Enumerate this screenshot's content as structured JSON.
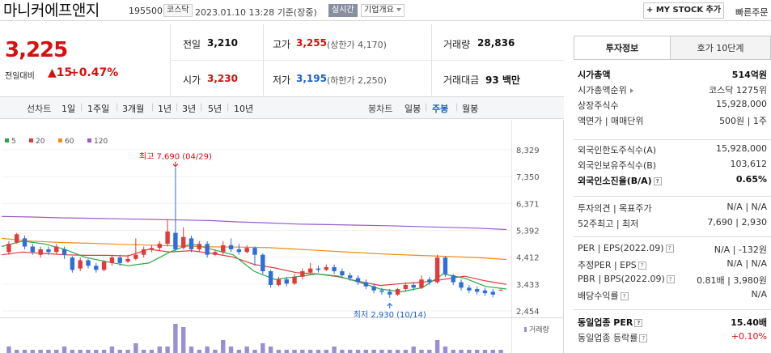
{
  "header": {
    "company_name": "마니커에프앤지",
    "stock_code": "195500",
    "market": "코스닥",
    "datetime": "2023.01.10 13:28 기준(장중)",
    "realtime_badge": "실시간",
    "corp_info_label": "기업개요",
    "mystock_label": "+ MY STOCK 추가",
    "quick_order_label": "빠른주문"
  },
  "price": {
    "current": "3,225",
    "change_label": "전일대비",
    "change_symbol": "▲",
    "change_value": "15",
    "change_pct": "+0.47%"
  },
  "quote": {
    "prev_close_label": "전일",
    "prev_close": "3,210",
    "high_label": "고가",
    "high": "3,255",
    "upper_limit": "(상한가 4,170)",
    "volume_label": "거래량",
    "volume": "28,836",
    "open_label": "시가",
    "open": "3,230",
    "low_label": "저가",
    "low": "3,195",
    "lower_limit": "(하한가 2,250)",
    "amount_label": "거래대금",
    "amount": "93 백만"
  },
  "period_bar": {
    "line_chart_label": "선차트",
    "line_periods": [
      "1일",
      "1주일",
      "3개월",
      "1년",
      "3년",
      "5년",
      "10년"
    ],
    "candle_chart_label": "봉차트",
    "candle_periods": [
      "일봉",
      "주봉",
      "월봉"
    ],
    "active_candle": "주봉"
  },
  "chart_data": {
    "type": "line",
    "legend": [
      "5",
      "20",
      "60",
      "120"
    ],
    "legend_colors": [
      "#2aa845",
      "#e03a3a",
      "#f08c1a",
      "#9b5bc8"
    ],
    "y_ticks": [
      "8,329",
      "7,350",
      "6,371",
      "5,392",
      "4,412",
      "3,433",
      "2,454"
    ],
    "ylim": [
      2454,
      8329
    ],
    "high_annotation": "최고 7,690 (04/29)",
    "low_annotation": "최저 2,930 (10/14)",
    "volume_label": "거래량",
    "ma120": [
      5900,
      5880,
      5850,
      5830,
      5810,
      5790,
      5770,
      5750,
      5700,
      5660,
      5620,
      5600,
      5580,
      5560,
      5530,
      5500,
      5470,
      5420
    ],
    "ma60": [
      5100,
      5000,
      4950,
      4920,
      4880,
      4850,
      4820,
      4790,
      4780,
      4760,
      4700,
      4640,
      4580,
      4520,
      4480,
      4440,
      4400,
      4330
    ],
    "ma20": [
      4500,
      4600,
      4550,
      4500,
      4480,
      4480,
      4460,
      4700,
      4600,
      4650,
      4550,
      4420,
      4150,
      4020,
      3850,
      3800,
      3700,
      3530,
      3380,
      3450,
      3500,
      3600,
      3720,
      3550,
      3420
    ],
    "ma5": [
      4800,
      5000,
      4900,
      4700,
      4400,
      4250,
      4100,
      4200,
      4600,
      4900,
      4700,
      4500,
      3900,
      3600,
      3700,
      3800,
      3720,
      3500,
      3250,
      3150,
      3300,
      3800,
      3650,
      3350,
      3250
    ],
    "candles": [
      {
        "o": 4600,
        "c": 4900,
        "h": 5000,
        "l": 4500
      },
      {
        "o": 4950,
        "c": 5250,
        "h": 5300,
        "l": 4900
      },
      {
        "o": 5100,
        "c": 4800,
        "h": 5200,
        "l": 4700
      },
      {
        "o": 4800,
        "c": 4600,
        "h": 4900,
        "l": 4500
      },
      {
        "o": 4500,
        "c": 4700,
        "h": 4800,
        "l": 4400
      },
      {
        "o": 4700,
        "c": 4600,
        "h": 4800,
        "l": 4500
      },
      {
        "o": 4600,
        "c": 4800,
        "h": 4900,
        "l": 4500
      },
      {
        "o": 4700,
        "c": 4500,
        "h": 4800,
        "l": 4350
      },
      {
        "o": 4400,
        "c": 3950,
        "h": 4450,
        "l": 3850
      },
      {
        "o": 4000,
        "c": 4300,
        "h": 4400,
        "l": 3900
      },
      {
        "o": 4300,
        "c": 4100,
        "h": 4350,
        "l": 4000
      },
      {
        "o": 4100,
        "c": 3950,
        "h": 4200,
        "l": 3850
      },
      {
        "o": 3950,
        "c": 4250,
        "h": 4300,
        "l": 3900
      },
      {
        "o": 4200,
        "c": 4400,
        "h": 4500,
        "l": 4100
      },
      {
        "o": 4400,
        "c": 4200,
        "h": 4500,
        "l": 4100
      },
      {
        "o": 4250,
        "c": 4350,
        "h": 4500,
        "l": 4200
      },
      {
        "o": 4350,
        "c": 4500,
        "h": 5100,
        "l": 4300
      },
      {
        "o": 4500,
        "c": 4700,
        "h": 4800,
        "l": 4400
      },
      {
        "o": 4700,
        "c": 4750,
        "h": 4850,
        "l": 4600
      },
      {
        "o": 4750,
        "c": 4900,
        "h": 5000,
        "l": 4650
      },
      {
        "o": 4900,
        "c": 5350,
        "h": 5800,
        "l": 4800
      },
      {
        "o": 5300,
        "c": 4700,
        "h": 7690,
        "l": 4600
      },
      {
        "o": 4750,
        "c": 5150,
        "h": 5500,
        "l": 4700
      },
      {
        "o": 5100,
        "c": 4700,
        "h": 5200,
        "l": 4600
      },
      {
        "o": 4700,
        "c": 4900,
        "h": 5000,
        "l": 4600
      },
      {
        "o": 4900,
        "c": 4500,
        "h": 5000,
        "l": 4400
      },
      {
        "o": 4500,
        "c": 4600,
        "h": 4700,
        "l": 4450
      },
      {
        "o": 4600,
        "c": 4850,
        "h": 5000,
        "l": 4500
      },
      {
        "o": 4850,
        "c": 4700,
        "h": 5100,
        "l": 4600
      },
      {
        "o": 4700,
        "c": 4600,
        "h": 4900,
        "l": 4500
      },
      {
        "o": 4600,
        "c": 4750,
        "h": 4850,
        "l": 4550
      },
      {
        "o": 4750,
        "c": 4500,
        "h": 4800,
        "l": 4100
      },
      {
        "o": 4500,
        "c": 3900,
        "h": 4550,
        "l": 3800
      },
      {
        "o": 3900,
        "c": 3400,
        "h": 3950,
        "l": 3300
      },
      {
        "o": 3400,
        "c": 3600,
        "h": 3700,
        "l": 3350
      },
      {
        "o": 3600,
        "c": 3450,
        "h": 3700,
        "l": 3350
      },
      {
        "o": 3450,
        "c": 3700,
        "h": 3800,
        "l": 3400
      },
      {
        "o": 3700,
        "c": 3900,
        "h": 4000,
        "l": 3600
      },
      {
        "o": 3850,
        "c": 4000,
        "h": 4200,
        "l": 3800
      },
      {
        "o": 4000,
        "c": 3950,
        "h": 4100,
        "l": 3850
      },
      {
        "o": 3950,
        "c": 4050,
        "h": 4150,
        "l": 3900
      },
      {
        "o": 4050,
        "c": 3900,
        "h": 4150,
        "l": 3800
      },
      {
        "o": 3900,
        "c": 3750,
        "h": 4000,
        "l": 3650
      },
      {
        "o": 3750,
        "c": 3650,
        "h": 3850,
        "l": 3550
      },
      {
        "o": 3650,
        "c": 3500,
        "h": 3750,
        "l": 3400
      },
      {
        "o": 3500,
        "c": 3350,
        "h": 3600,
        "l": 3250
      },
      {
        "o": 3350,
        "c": 3200,
        "h": 3450,
        "l": 3100
      },
      {
        "o": 3200,
        "c": 3150,
        "h": 3300,
        "l": 3050
      },
      {
        "o": 3150,
        "c": 3050,
        "h": 3250,
        "l": 2930
      },
      {
        "o": 3050,
        "c": 3250,
        "h": 3300,
        "l": 3000
      },
      {
        "o": 3250,
        "c": 3400,
        "h": 3500,
        "l": 3150
      },
      {
        "o": 3400,
        "c": 3300,
        "h": 3500,
        "l": 3200
      },
      {
        "o": 3300,
        "c": 3600,
        "h": 3750,
        "l": 3250
      },
      {
        "o": 3600,
        "c": 3500,
        "h": 3700,
        "l": 3400
      },
      {
        "o": 3500,
        "c": 4400,
        "h": 4500,
        "l": 3450
      },
      {
        "o": 4400,
        "c": 3800,
        "h": 4450,
        "l": 3700
      },
      {
        "o": 3750,
        "c": 3500,
        "h": 3800,
        "l": 3400
      },
      {
        "o": 3500,
        "c": 3300,
        "h": 3600,
        "l": 3200
      },
      {
        "o": 3300,
        "c": 3200,
        "h": 3400,
        "l": 3100
      },
      {
        "o": 3250,
        "c": 3150,
        "h": 3350,
        "l": 3050
      },
      {
        "o": 3200,
        "c": 3100,
        "h": 3300,
        "l": 3000
      },
      {
        "o": 3150,
        "c": 3050,
        "h": 3250,
        "l": 2950
      },
      {
        "o": 3210,
        "c": 3225,
        "h": 3255,
        "l": 3195
      }
    ],
    "volumes": [
      2,
      1,
      1,
      1,
      1,
      1,
      1,
      2,
      1,
      1,
      1,
      1,
      1,
      2,
      1,
      1,
      3,
      1,
      1,
      2,
      2,
      9,
      8,
      2,
      1,
      2,
      1,
      4,
      2,
      1,
      2,
      1,
      3,
      2,
      1,
      1,
      1,
      1,
      1,
      1,
      1,
      2,
      1,
      1,
      1,
      1,
      1,
      1,
      1,
      1,
      1,
      2,
      1,
      1,
      4,
      2,
      1,
      1,
      1,
      1,
      1,
      1,
      1
    ]
  },
  "right_panel": {
    "tabs": [
      "투자정보",
      "호가 10단계"
    ],
    "rows_g1": [
      {
        "k": "시가총액",
        "v": "514억원",
        "bold": true
      },
      {
        "k": "시가총액순위",
        "v": "코스닥 1275위",
        "arrow": true
      },
      {
        "k": "상장주식수",
        "v": "15,928,000"
      },
      {
        "k": "액면가 | 매매단위",
        "v": "500원 | 1주"
      }
    ],
    "rows_g2": [
      {
        "k": "외국인한도주식수(A)",
        "v": "15,928,000"
      },
      {
        "k": "외국인보유주식수(B)",
        "v": "103,612"
      },
      {
        "k": "외국인소진율(B/A)",
        "v": "0.65%",
        "bold": true,
        "q": true
      }
    ],
    "rows_g3": [
      {
        "k": "투자의견 | 목표주가",
        "v": "N/A | N/A"
      },
      {
        "k": "52주최고 | 최저",
        "v": "7,690 | 2,930"
      }
    ],
    "rows_g4": [
      {
        "k": "PER | EPS(2022.09)",
        "v": "N/A | -132원",
        "q": true
      },
      {
        "k": "추정PER | EPS",
        "v": "N/A | N/A",
        "q": true
      },
      {
        "k": "PBR | BPS(2022.09)",
        "v": "0.81배 | 3,980원",
        "q": true
      },
      {
        "k": "배당수익률",
        "v": "N/A",
        "q": true
      }
    ],
    "rows_g5": [
      {
        "k": "동일업종 PER",
        "v": "15.40배",
        "bold": true,
        "q": true
      },
      {
        "k": "동일업종 등락률",
        "v": "+0.10%",
        "q": true,
        "red": true
      }
    ]
  }
}
